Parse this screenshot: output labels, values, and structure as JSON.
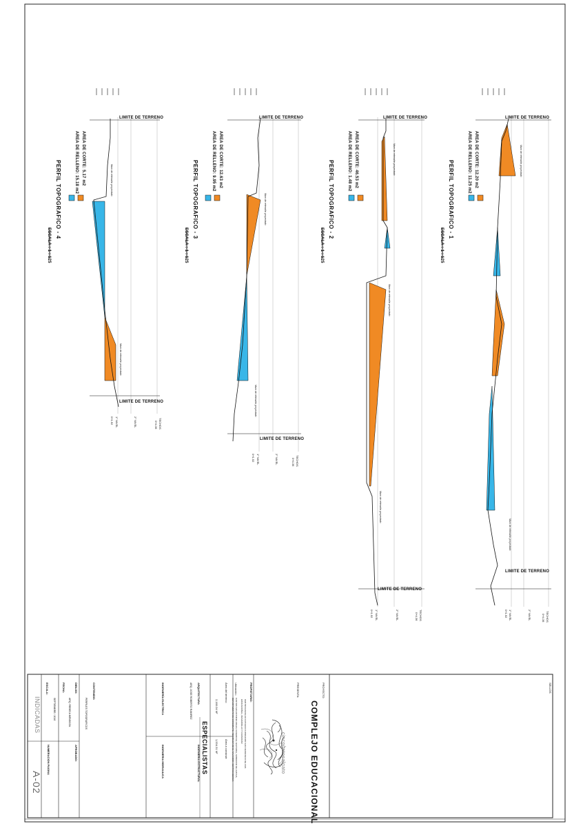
{
  "profiles": [
    {
      "title": "PERFIL TOPOGRAFICO - 1",
      "cut_area": "AREA DE CORTE: 12.20 m2",
      "fill_area": "AREA DE RELLENO: 11.25 m2",
      "scale": "ESCALA : 1 : 125",
      "terrain_top": "LIMITE DE TERRENO",
      "terrain_bottom": "LIMITE DE TERRENO",
      "wall_top": "Muro de retención proyectado",
      "wall_bottom": "Muro de retención proyectado",
      "level_1": "1° NIVEL",
      "level_1_value": "0+1.52",
      "level_2": "2° NIVEL",
      "roof": "TECHOS",
      "roof_value": "0+4.36"
    },
    {
      "title": "PERFIL TOPOGRAFICO - 2",
      "cut_area": "AREA DE CORTE: 46.53 m2",
      "fill_area": "AREA DE RELLENO: 1.48 m2",
      "scale": "ESCALA : 1 : 125",
      "terrain_top": "LIMITE DE TERRENO",
      "terrain_bottom": "LIMITE DE TERRENO",
      "wall_top": "Muro de retención proyectado",
      "wall_bottom": "Muro de retención proyectado",
      "level_1": "1° NIVEL",
      "level_1_value": "0+1.52",
      "level_2": "2° NIVEL",
      "roof": "TECHOS",
      "roof_value": "0+4.36"
    },
    {
      "title": "PERFIL TOPOGRAFICO - 3",
      "cut_area": "AREA DE CORTE: 12.63 m2",
      "fill_area": "AREA DE RELLENO: 9.95 m2",
      "scale": "ESCALA : 1 : 125",
      "terrain_top": "LIMITE DE TERRENO",
      "terrain_bottom": "LIMITE DE TERRENO",
      "wall_top": "Muro de retención proyectado",
      "wall_bottom": "Muro de retención proyectado",
      "level_1": "1° NIVEL",
      "level_1_value": "0+1.52",
      "level_2": "2° NIVEL",
      "roof": "TECHOS",
      "roof_value": "0+4.36"
    },
    {
      "title": "PERFIL TOPOGRAFICO - 4",
      "cut_area": "AREA DE CORTE: 5.17 m2",
      "fill_area": "AREA DE RELLENO: 15.18 m2",
      "scale": "ESCALA : 1 : 125",
      "terrain_top": "LIMITE DE TERRENO",
      "terrain_bottom": "LIMITE DE TERRENO",
      "wall_top": "Muro de retención proyectado",
      "wall_bottom": "Muro de retención proyectado",
      "level_1": "1° NIVEL",
      "level_1_value": "0+1.52",
      "level_2": "2° NIVEL",
      "roof": "TECHOS",
      "roof_value": "0+4.36"
    }
  ],
  "colors": {
    "cut": "#f08a24",
    "fill": "#38b6e8",
    "line": "#111111",
    "grid": "#bdbdbd",
    "frame": "#222222"
  },
  "title_block": {
    "sellos": "SELLOS",
    "proyecto_label": "PROYECTO:",
    "proyecto": "COMPLEJO EDUCACIONAL",
    "presenta_label": "PRESENTA:",
    "logo_text": "cincogatosalgato",
    "propietario_label": "PROPIETARIO:",
    "propietario": "CENTRO ESCOLAR CATOLICO FUNDACION SAN FRANCISCO DE ASIS",
    "propietario_2": "EDUCACIONAL, DESARROLLO Y CAPACIDAD",
    "ubicacion_label": "Ubicación:",
    "ubicacion": "CANTON SAN ANTONIO ABAJO, CASERIO EL GUAYABAL, MUNICIPIO DE JUAYUA,",
    "ubicacion_2": "DEPARTAMENTO DE SONSONATE, REPUBLICA DE EL SALVADOR, CENTROAMERICA",
    "area_terreno_label": "Área del terreno:",
    "area_terreno": "2,160.04 M²",
    "area_construir_label": "Área a construir:",
    "area_construir": "1,534.31 M²",
    "especialistas": "ESPECIALISTAS",
    "arquitectura_label": "ARQUITECTURA",
    "arquitecto": "ARQ. JOSE ROBERTO RAMIREZ",
    "ing_estructural": "INGENIERIA ESTRUCTURAL",
    "ing_electrica": "INGENIERÍA ELECTRICA",
    "ing_hidraulica": "INGENIERIA HIDRAULICA",
    "contenido_label": "CONTENIDO:",
    "contenido": "PERFILES TOPOGRAFICOS",
    "dibujo_label": "DIBUJO:",
    "dibujo": "ARQ. REBECA MENDOZA",
    "aprobado_label": "APROBADO:",
    "fecha_label": "FECHA:",
    "fecha": "SEPTIEMBRE / 2016",
    "escala_label": "ESCALA:",
    "escala": "INDICADAS",
    "numeracion_label": "NUMERACION PAGINA",
    "page": "A-02"
  }
}
